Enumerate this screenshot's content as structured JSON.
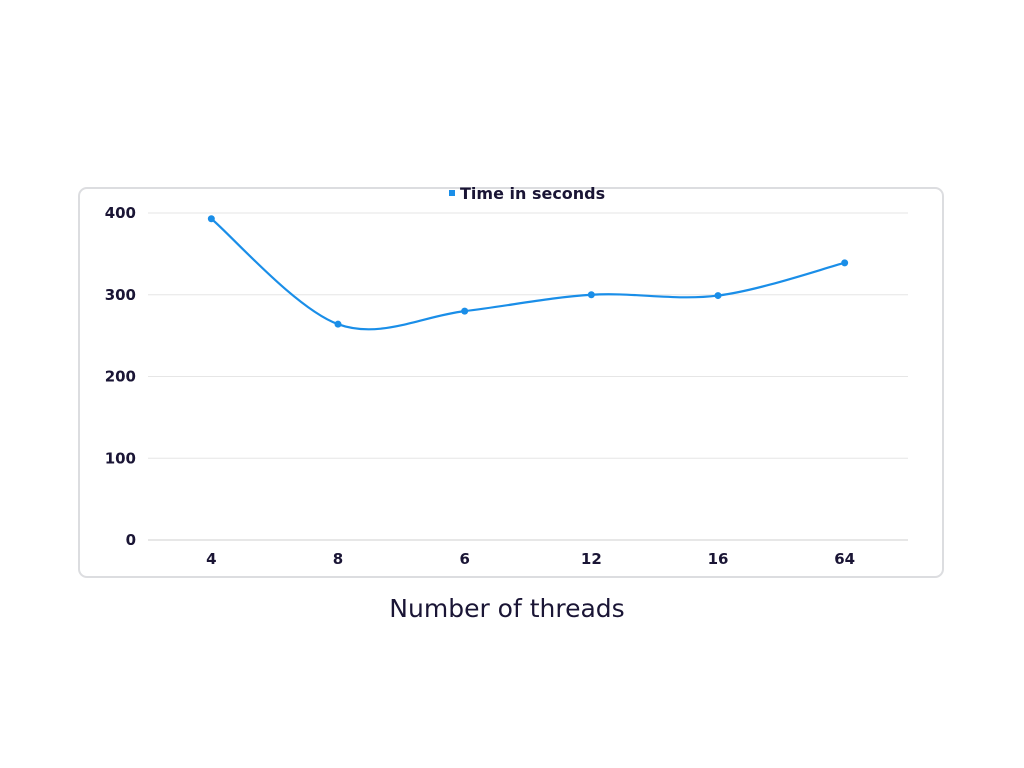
{
  "chart_data": {
    "type": "line",
    "x": [
      "4",
      "8",
      "6",
      "12",
      "16",
      "64"
    ],
    "series": [
      {
        "name": "Time in seconds",
        "values": [
          393,
          264,
          280,
          300,
          299,
          339
        ]
      }
    ],
    "xlabel": "Number of threads",
    "ylabel": "",
    "ylim": [
      0,
      400
    ],
    "yticks": [
      "0",
      "100",
      "200",
      "300",
      "400"
    ],
    "grid": true,
    "smooth": true,
    "legend_position": "top-center",
    "colors": {
      "series": "#1a8ee8",
      "grid": "#e6e6e6",
      "axis": "#cfcfcf",
      "text": "#1a1535",
      "border": "#dcdde0"
    }
  }
}
